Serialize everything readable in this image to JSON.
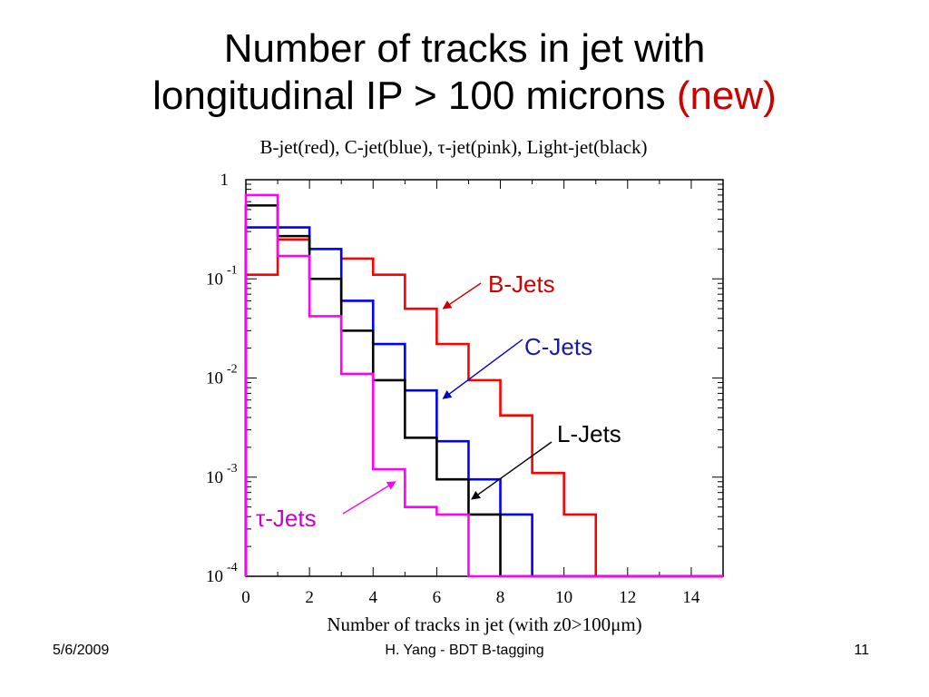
{
  "slide": {
    "title_line1": "Number of tracks in jet with",
    "title_line2_main": "longitudinal IP > 100 microns",
    "title_line2_highlight": "(new)",
    "subtitle": "B-jet(red), C-jet(blue), τ-jet(pink), Light-jet(black)"
  },
  "footer": {
    "date": "5/6/2009",
    "center": "H. Yang - BDT B-tagging",
    "page": "11"
  },
  "chart_data": {
    "type": "line",
    "drawstyle": "histogram-step",
    "title": "",
    "xlabel": "Number of tracks in jet (with z0>100μm)",
    "ylabel": "",
    "xlim": [
      0,
      15
    ],
    "ylim": [
      0.0001,
      1
    ],
    "yscale": "log",
    "x_ticks": [
      0,
      2,
      4,
      6,
      8,
      10,
      12,
      14
    ],
    "y_ticks": [
      {
        "value": 1,
        "base": "1",
        "exp": ""
      },
      {
        "value": 0.1,
        "base": "10",
        "exp": "-1"
      },
      {
        "value": 0.01,
        "base": "10",
        "exp": "-2"
      },
      {
        "value": 0.001,
        "base": "10",
        "exp": "-3"
      },
      {
        "value": 0.0001,
        "base": "10",
        "exp": "-4"
      }
    ],
    "bin_edges": [
      0,
      1,
      2,
      3,
      4,
      5,
      6,
      7,
      8,
      9,
      10,
      11,
      12,
      13,
      14,
      15
    ],
    "series": [
      {
        "name": "B-Jets",
        "color": "#ff0000",
        "values": [
          0.11,
          0.25,
          0.2,
          0.16,
          0.11,
          0.05,
          0.022,
          0.0095,
          0.0042,
          0.0011,
          0.00042,
          0.0001,
          0.0001,
          0.0001,
          0.0001
        ]
      },
      {
        "name": "C-Jets",
        "color": "#0000ff",
        "values": [
          0.33,
          0.33,
          0.2,
          0.06,
          0.022,
          0.0075,
          0.0023,
          0.00095,
          0.00042,
          0.0001,
          0.0001,
          0.0001,
          0.0001,
          0.0001,
          0.0001
        ]
      },
      {
        "name": "L-Jets",
        "color": "#000000",
        "values": [
          0.55,
          0.27,
          0.1,
          0.03,
          0.0095,
          0.0025,
          0.00095,
          0.00042,
          0.0001,
          0.0001,
          0.0001,
          0.0001,
          0.0001,
          0.0001,
          0.0001
        ]
      },
      {
        "name": "τ-Jets",
        "color": "#ff00ff",
        "values": [
          0.7,
          0.17,
          0.042,
          0.011,
          0.0012,
          0.0005,
          0.00042,
          0.0001,
          0.0001,
          0.0001,
          0.0001,
          0.0001,
          0.0001,
          0.0001,
          0.0001
        ]
      }
    ],
    "annotations": [
      {
        "text": "B-Jets",
        "color": "#cc0000",
        "arrow_color": "#cc0000",
        "points_to": [
          6.2,
          0.05
        ]
      },
      {
        "text": "C-Jets",
        "color": "#1a1aa8",
        "arrow_color": "#0000cc",
        "points_to": [
          6.2,
          0.0062
        ]
      },
      {
        "text": "L-Jets",
        "color": "#000000",
        "arrow_color": "#000000",
        "points_to": [
          7.1,
          0.0006
        ]
      },
      {
        "text": "τ-Jets",
        "color": "#cc00cc",
        "arrow_color": "#ff00ff",
        "points_to": [
          4.7,
          0.0009
        ]
      }
    ]
  }
}
